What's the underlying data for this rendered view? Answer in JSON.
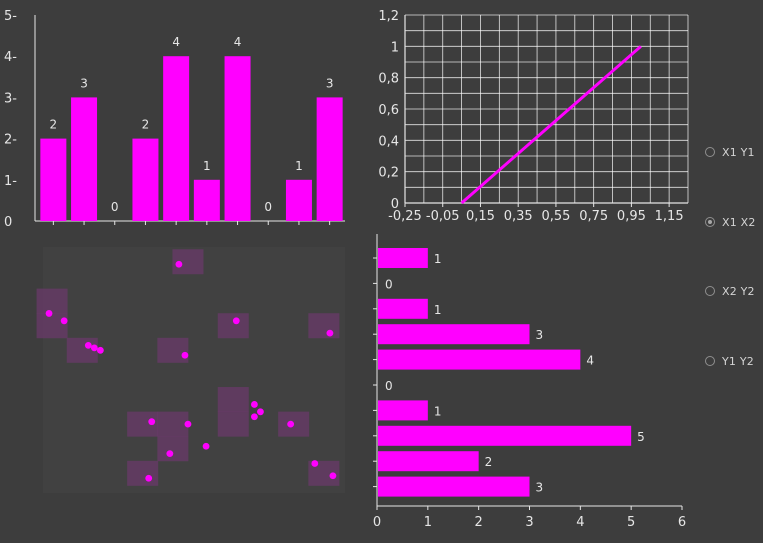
{
  "colors": {
    "accent": "#ff00ff",
    "background": "#3d3d3d",
    "axis": "#e6e6e6",
    "heat": "#6a3a6a"
  },
  "radio_options": [
    {
      "label": "X1 Y1",
      "checked": false
    },
    {
      "label": "X1 X2",
      "checked": true
    },
    {
      "label": "X2 Y2",
      "checked": false
    },
    {
      "label": "Y1 Y2",
      "checked": false
    }
  ],
  "chart_data": [
    {
      "type": "bar",
      "orientation": "vertical",
      "values": [
        2,
        3,
        0,
        2,
        4,
        1,
        4,
        0,
        1,
        3
      ],
      "ylim": [
        0,
        5
      ],
      "yticks": [
        "0",
        "1-",
        "2-",
        "3-",
        "4-",
        "5-"
      ],
      "data_labels": [
        "2",
        "3",
        "0",
        "2",
        "4",
        "1",
        "4",
        "0",
        "1",
        "3"
      ]
    },
    {
      "type": "line",
      "x": [
        0.05,
        1.0
      ],
      "y": [
        0,
        1
      ],
      "xlim": [
        -0.25,
        1.25
      ],
      "ylim": [
        0,
        1.2
      ],
      "xticks": [
        "-0,25",
        "-0,05",
        "0,15",
        "0,35",
        "0,55",
        "0,75",
        "0,95",
        "1,15"
      ],
      "yticks": [
        "0",
        "0,2",
        "0,4",
        "0,6",
        "0,8",
        "1",
        "1,2"
      ],
      "grid": true
    },
    {
      "type": "scatter",
      "xlim": [
        0,
        1
      ],
      "ylim": [
        0,
        1
      ],
      "points": [
        [
          0.45,
          0.93
        ],
        [
          0.02,
          0.73
        ],
        [
          0.07,
          0.7
        ],
        [
          0.64,
          0.7
        ],
        [
          0.95,
          0.65
        ],
        [
          0.15,
          0.6
        ],
        [
          0.17,
          0.59
        ],
        [
          0.19,
          0.58
        ],
        [
          0.47,
          0.56
        ],
        [
          0.7,
          0.36
        ],
        [
          0.72,
          0.33
        ],
        [
          0.7,
          0.31
        ],
        [
          0.36,
          0.29
        ],
        [
          0.48,
          0.28
        ],
        [
          0.82,
          0.28
        ],
        [
          0.54,
          0.19
        ],
        [
          0.42,
          0.16
        ],
        [
          0.9,
          0.12
        ],
        [
          0.96,
          0.07
        ],
        [
          0.35,
          0.06
        ]
      ],
      "heat_cells": [
        [
          0.48,
          0.94
        ],
        [
          0.03,
          0.78
        ],
        [
          0.03,
          0.68
        ],
        [
          0.63,
          0.68
        ],
        [
          0.93,
          0.68
        ],
        [
          0.13,
          0.58
        ],
        [
          0.43,
          0.58
        ],
        [
          0.63,
          0.38
        ],
        [
          0.33,
          0.28
        ],
        [
          0.43,
          0.28
        ],
        [
          0.63,
          0.28
        ],
        [
          0.83,
          0.28
        ],
        [
          0.43,
          0.18
        ],
        [
          0.33,
          0.08
        ],
        [
          0.93,
          0.08
        ]
      ]
    },
    {
      "type": "bar",
      "orientation": "horizontal",
      "values": [
        1,
        0,
        1,
        3,
        4,
        0,
        1,
        5,
        2,
        3
      ],
      "xlim": [
        0,
        6
      ],
      "xticks": [
        "0",
        "1",
        "2",
        "3",
        "4",
        "5",
        "6"
      ],
      "data_labels": [
        "1",
        "0",
        "1",
        "3",
        "4",
        "0",
        "1",
        "5",
        "2",
        "3"
      ]
    }
  ]
}
